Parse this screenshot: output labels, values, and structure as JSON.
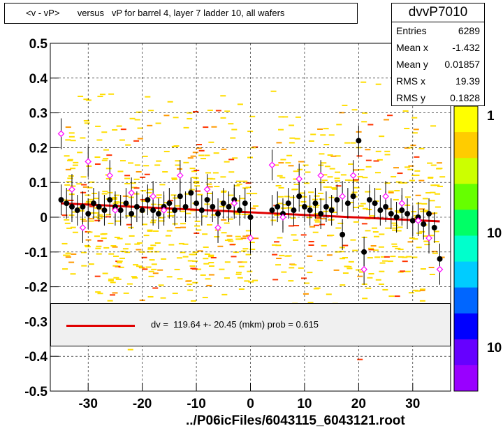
{
  "title": "<v - vP>       versus   vP for barrel 4, layer 7 ladder 10, all wafers",
  "stats": {
    "name": "dvvP7010",
    "rows": [
      {
        "label": "Entries",
        "value": "6289"
      },
      {
        "label": "Mean x",
        "value": "-1.432"
      },
      {
        "label": "Mean y",
        "value": "0.01857"
      },
      {
        "label": "RMS x",
        "value": "19.39"
      },
      {
        "label": "RMS y",
        "value": "0.1828"
      }
    ]
  },
  "legend": {
    "fit_label": "dv =  119.64 +- 20.45 (mkm) prob = 0.615",
    "fit_color": "#e00000"
  },
  "footer": "../P06icFiles/6043115_6043121.root",
  "palette_labels": [
    "1",
    "10",
    "10"
  ],
  "chart_data": {
    "type": "scatter",
    "title": "<v - vP>       versus   vP for barrel 4, layer 7 ladder 10, all wafers",
    "xlim": [
      -37,
      37
    ],
    "ylim": [
      -0.5,
      0.5
    ],
    "x_ticks": [
      -30,
      -20,
      -10,
      0,
      10,
      20,
      30
    ],
    "x_tick_labels": [
      "-30",
      "-20",
      "-10",
      "0",
      "10",
      "20",
      "30"
    ],
    "y_ticks": [
      0.5,
      0.4,
      0.3,
      0.2,
      0.1,
      0,
      -0.1,
      -0.2,
      -0.3,
      -0.4,
      -0.5
    ],
    "y_tick_labels": [
      "0.5",
      "0.4",
      "0.3",
      "0.2",
      "0.1",
      "0",
      "-0.1",
      "-0.2",
      "-0.3",
      "-0.4",
      "-0.5"
    ],
    "grid": true,
    "fit_line": {
      "x": [
        -35,
        35
      ],
      "y": [
        0.04,
        -0.012
      ],
      "color": "#e00000"
    },
    "series": [
      {
        "marker": "filled-circle",
        "color": "#000000",
        "points": [
          [
            -35,
            0.05
          ],
          [
            -34,
            0.04
          ],
          [
            -33,
            0.03
          ],
          [
            -32,
            0.02
          ],
          [
            -31,
            0.03
          ],
          [
            -30,
            0.01
          ],
          [
            -29,
            0.04
          ],
          [
            -28,
            0.03
          ],
          [
            -27,
            0.02
          ],
          [
            -26,
            0.05
          ],
          [
            -25,
            0.03
          ],
          [
            -24,
            0.02
          ],
          [
            -23,
            0.04
          ],
          [
            -22,
            0.01
          ],
          [
            -21,
            0.03
          ],
          [
            -20,
            0.02
          ],
          [
            -19,
            0.05
          ],
          [
            -18,
            0.02
          ],
          [
            -17,
            0.01
          ],
          [
            -16,
            0.03
          ],
          [
            -15,
            0.04
          ],
          [
            -14,
            0.02
          ],
          [
            -13,
            0.06
          ],
          [
            -12,
            0.03
          ],
          [
            -11,
            0.07
          ],
          [
            -10,
            0.04
          ],
          [
            -9,
            0.02
          ],
          [
            -8,
            0.05
          ],
          [
            -7,
            0.03
          ],
          [
            -6,
            0.01
          ],
          [
            -5,
            0.04
          ],
          [
            -4,
            0.03
          ],
          [
            -3,
            0.05
          ],
          [
            -2,
            0.02
          ],
          [
            -1,
            0.04
          ],
          [
            0,
            0.0
          ],
          [
            4,
            0.02
          ],
          [
            5,
            0.03
          ],
          [
            6,
            0.01
          ],
          [
            7,
            0.04
          ],
          [
            8,
            0.02
          ],
          [
            9,
            0.06
          ],
          [
            10,
            0.03
          ],
          [
            11,
            0.02
          ],
          [
            12,
            0.04
          ],
          [
            13,
            0.01
          ],
          [
            14,
            0.03
          ],
          [
            15,
            0.02
          ],
          [
            16,
            0.05
          ],
          [
            17,
            -0.05
          ],
          [
            18,
            0.04
          ],
          [
            19,
            0.06
          ],
          [
            20,
            0.22
          ],
          [
            21,
            -0.1
          ],
          [
            22,
            0.05
          ],
          [
            23,
            0.04
          ],
          [
            24,
            0.02
          ],
          [
            25,
            0.03
          ],
          [
            26,
            0.01
          ],
          [
            27,
            0.0
          ],
          [
            28,
            0.02
          ],
          [
            29,
            0.01
          ],
          [
            30,
            -0.01
          ],
          [
            31,
            0.0
          ],
          [
            32,
            -0.02
          ],
          [
            33,
            0.01
          ],
          [
            34,
            -0.03
          ],
          [
            35,
            -0.12
          ]
        ]
      },
      {
        "marker": "open-diamond",
        "color": "#ff00ff",
        "points": [
          [
            -35,
            0.24
          ],
          [
            -33,
            0.08
          ],
          [
            -30,
            0.16
          ],
          [
            -31,
            -0.03
          ],
          [
            -26,
            0.12
          ],
          [
            -25,
            0.02
          ],
          [
            -22,
            0.07
          ],
          [
            -18,
            0.06
          ],
          [
            -16,
            0.02
          ],
          [
            -13,
            0.12
          ],
          [
            -8,
            0.08
          ],
          [
            -6,
            -0.03
          ],
          [
            -3,
            0.04
          ],
          [
            0,
            -0.06
          ],
          [
            4,
            0.15
          ],
          [
            6,
            0.0
          ],
          [
            9,
            0.11
          ],
          [
            13,
            0.12
          ],
          [
            17,
            0.06
          ],
          [
            19,
            0.12
          ],
          [
            21,
            -0.15
          ],
          [
            25,
            0.06
          ],
          [
            28,
            0.04
          ],
          [
            31,
            -0.01
          ],
          [
            33,
            -0.06
          ],
          [
            35,
            -0.15
          ]
        ]
      }
    ],
    "colorbar": {
      "colors": [
        "#ffff00",
        "#ffcc00",
        "#ccff00",
        "#66ff00",
        "#00ff66",
        "#00ffcc",
        "#00ccff",
        "#0066ff",
        "#0000ff",
        "#6600ff",
        "#9900ff"
      ]
    }
  }
}
